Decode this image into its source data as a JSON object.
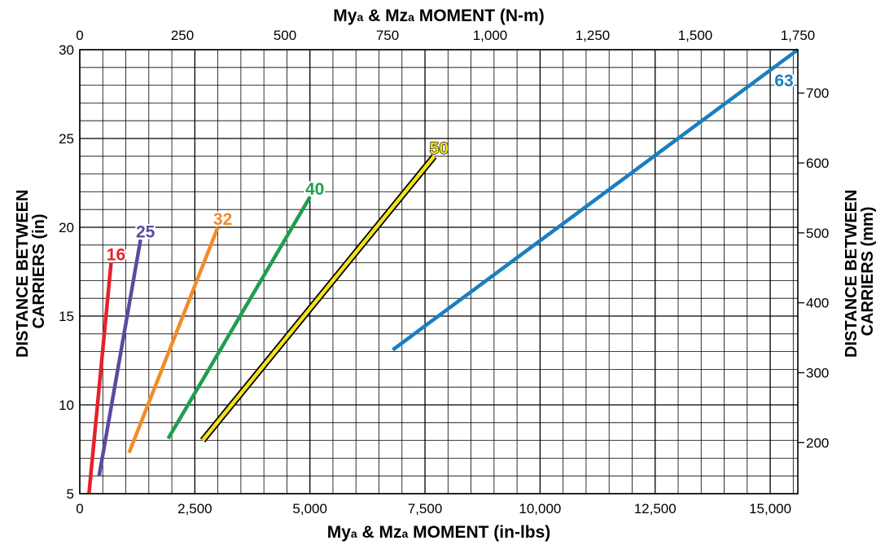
{
  "chart_data": {
    "type": "line",
    "title": "",
    "top_axis": {
      "label_parts": [
        {
          "text": "My",
          "sub": false
        },
        {
          "text": "a",
          "sub": true
        },
        {
          "text": " & Mz",
          "sub": false
        },
        {
          "text": "a",
          "sub": true
        },
        {
          "text": " MOMENT (N-m)",
          "sub": false
        }
      ],
      "range": [
        0,
        1750
      ],
      "ticks": [
        0,
        250,
        500,
        750,
        1000,
        1250,
        1500,
        1750
      ],
      "tick_labels": [
        "0",
        "250",
        "500",
        "750",
        "1,000",
        "1,250",
        "1,500",
        "1,750"
      ]
    },
    "bottom_axis": {
      "label_parts": [
        {
          "text": "My",
          "sub": false
        },
        {
          "text": "a",
          "sub": true
        },
        {
          "text": " & Mz",
          "sub": false
        },
        {
          "text": "a",
          "sub": true
        },
        {
          "text": " MOMENT (in-lbs)",
          "sub": false
        }
      ],
      "range": [
        0,
        15600
      ],
      "ticks": [
        0,
        2500,
        5000,
        7500,
        10000,
        12500,
        15000
      ],
      "tick_labels": [
        "0",
        "2,500",
        "5,000",
        "7,500",
        "10,000",
        "12,500",
        "15,000"
      ]
    },
    "left_axis": {
      "label_lines": [
        "DISTANCE BETWEEN",
        "CARRIERS (in)"
      ],
      "range": [
        5,
        30
      ],
      "ticks": [
        5,
        10,
        15,
        20,
        25,
        30
      ],
      "tick_labels": [
        "5",
        "10",
        "15",
        "20",
        "25",
        "30"
      ]
    },
    "right_axis": {
      "label_lines": [
        "DISTANCE BETWEEN",
        "CARRIERS (mm)"
      ],
      "ticks": [
        200,
        300,
        400,
        500,
        600,
        700
      ],
      "tick_labels": [
        "200",
        "300",
        "400",
        "500",
        "600",
        "700"
      ]
    },
    "grid": true,
    "series": [
      {
        "name": "16",
        "color": "#e8202a",
        "style": "solid",
        "x": [
          200,
          680
        ],
        "y": [
          5.0,
          18.0
        ]
      },
      {
        "name": "25",
        "color": "#5b4aa0",
        "style": "solid",
        "x": [
          420,
          1320
        ],
        "y": [
          6.0,
          19.3
        ]
      },
      {
        "name": "32",
        "color": "#f28c28",
        "style": "solid",
        "x": [
          1070,
          3000
        ],
        "y": [
          7.3,
          20.0
        ]
      },
      {
        "name": "40",
        "color": "#1f9e4e",
        "style": "solid",
        "x": [
          1920,
          5000
        ],
        "y": [
          8.1,
          21.7
        ]
      },
      {
        "name": "50",
        "color": "#f2e21d",
        "style": "outlined",
        "x": [
          2670,
          7700
        ],
        "y": [
          8.0,
          24.0
        ]
      },
      {
        "name": "63",
        "color": "#1a7ec0",
        "style": "solid",
        "x": [
          6800,
          15600
        ],
        "y": [
          13.1,
          30.0
        ]
      }
    ]
  }
}
